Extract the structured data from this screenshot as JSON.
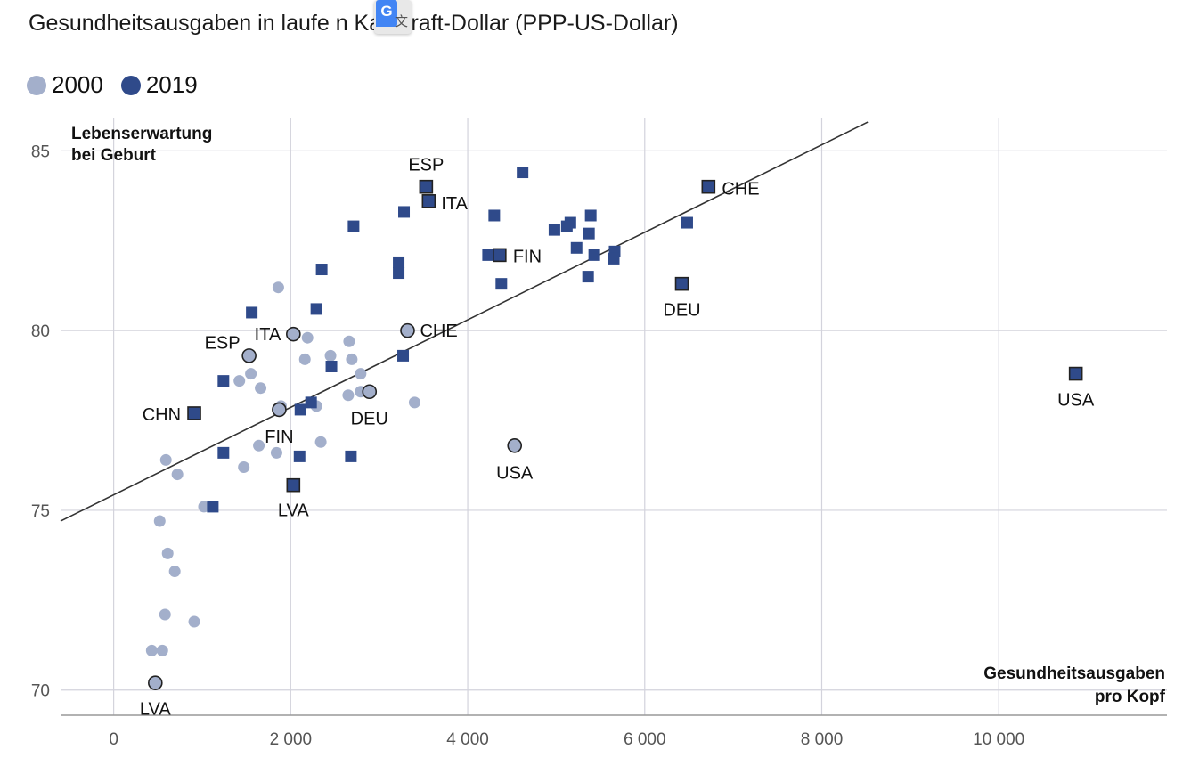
{
  "title": "Gesundheitsausgaben in laufe   n Kaufkraft-Dollar (PPP-US-Dollar)",
  "translate_icon": {
    "letter": "G",
    "glyph": "文"
  },
  "colors": {
    "s2000": "#a3afcb",
    "s2019": "#2f4a8a",
    "grid": "#d3d3dc",
    "trend": "#333333"
  },
  "chart_data": {
    "type": "scatter",
    "title": "Gesundheitsausgaben in laufe   n Kaufkraft-Dollar (PPP-US-Dollar)",
    "xlabel": "Gesundheitsausgaben pro Kopf",
    "ylabel": "Lebenserwartung bei Geburt",
    "xlabel_lines": [
      "Gesundheitsausgaben",
      "pro Kopf"
    ],
    "ylabel_lines": [
      "Lebenserwartung",
      "bei Geburt"
    ],
    "xlim": [
      -600,
      11900
    ],
    "ylim": [
      69.3,
      85.9
    ],
    "x_ticks": [
      0,
      2000,
      4000,
      6000,
      8000,
      10000
    ],
    "x_tick_labels": [
      "0",
      "2 000",
      "4 000",
      "6 000",
      "8 000",
      "10 000"
    ],
    "y_ticks": [
      70,
      75,
      80,
      85
    ],
    "y_tick_labels": [
      "70",
      "75",
      "80",
      "85"
    ],
    "grid": true,
    "legend": "top-left",
    "trendline": {
      "x1": -600,
      "y1": 74.7,
      "x2": 8520,
      "y2": 85.8
    },
    "series": [
      {
        "name": "2000",
        "marker": "circle",
        "points": [
          [
            1860,
            81.2
          ],
          [
            2190,
            79.8
          ],
          [
            2660,
            79.7
          ],
          [
            2450,
            79.3
          ],
          [
            2160,
            79.2
          ],
          [
            2690,
            79.2
          ],
          [
            1550,
            78.8
          ],
          [
            2790,
            78.8
          ],
          [
            1420,
            78.6
          ],
          [
            1660,
            78.4
          ],
          [
            2790,
            78.3
          ],
          [
            2650,
            78.2
          ],
          [
            3400,
            78.0
          ],
          [
            1890,
            77.9
          ],
          [
            2290,
            77.9
          ],
          [
            1640,
            76.8
          ],
          [
            2340,
            76.9
          ],
          [
            1840,
            76.6
          ],
          [
            590,
            76.4
          ],
          [
            720,
            76.0
          ],
          [
            1470,
            76.2
          ],
          [
            1020,
            75.1
          ],
          [
            520,
            74.7
          ],
          [
            610,
            73.8
          ],
          [
            690,
            73.3
          ],
          [
            580,
            72.1
          ],
          [
            910,
            71.9
          ],
          [
            430,
            71.1
          ],
          [
            550,
            71.1
          ]
        ],
        "labeled": [
          {
            "label": "ESP",
            "x": 1530,
            "y": 79.3
          },
          {
            "label": "ITA",
            "x": 2030,
            "y": 79.9
          },
          {
            "label": "CHE",
            "x": 3320,
            "y": 80.0
          },
          {
            "label": "FIN",
            "x": 1870,
            "y": 77.8
          },
          {
            "label": "DEU",
            "x": 2890,
            "y": 78.3
          },
          {
            "label": "USA",
            "x": 4530,
            "y": 76.8
          },
          {
            "label": "LVA",
            "x": 470,
            "y": 70.2
          }
        ]
      },
      {
        "name": "2019",
        "marker": "square",
        "points": [
          [
            4620,
            84.4
          ],
          [
            3280,
            83.3
          ],
          [
            4300,
            83.2
          ],
          [
            5390,
            83.2
          ],
          [
            5160,
            83.0
          ],
          [
            6480,
            83.0
          ],
          [
            2710,
            82.9
          ],
          [
            5120,
            82.9
          ],
          [
            4980,
            82.8
          ],
          [
            5370,
            82.7
          ],
          [
            5230,
            82.3
          ],
          [
            5660,
            82.2
          ],
          [
            4230,
            82.1
          ],
          [
            5430,
            82.1
          ],
          [
            5650,
            82.0
          ],
          [
            3220,
            81.9
          ],
          [
            2350,
            81.7
          ],
          [
            3220,
            81.6
          ],
          [
            5360,
            81.5
          ],
          [
            4380,
            81.3
          ],
          [
            1560,
            80.5
          ],
          [
            2290,
            80.6
          ],
          [
            3270,
            79.3
          ],
          [
            2460,
            79.0
          ],
          [
            1240,
            78.6
          ],
          [
            2230,
            78.0
          ],
          [
            2110,
            77.8
          ],
          [
            1240,
            76.6
          ],
          [
            2100,
            76.5
          ],
          [
            2680,
            76.5
          ],
          [
            1120,
            75.1
          ]
        ],
        "labeled": [
          {
            "label": "ESP",
            "x": 3530,
            "y": 84.0
          },
          {
            "label": "ITA",
            "x": 3560,
            "y": 83.6
          },
          {
            "label": "CHE",
            "x": 6720,
            "y": 84.0
          },
          {
            "label": "FIN",
            "x": 4360,
            "y": 82.1
          },
          {
            "label": "DEU",
            "x": 6420,
            "y": 81.3
          },
          {
            "label": "USA",
            "x": 10870,
            "y": 78.8
          },
          {
            "label": "CHN",
            "x": 910,
            "y": 77.7
          },
          {
            "label": "LVA",
            "x": 2030,
            "y": 75.7
          }
        ]
      }
    ]
  }
}
